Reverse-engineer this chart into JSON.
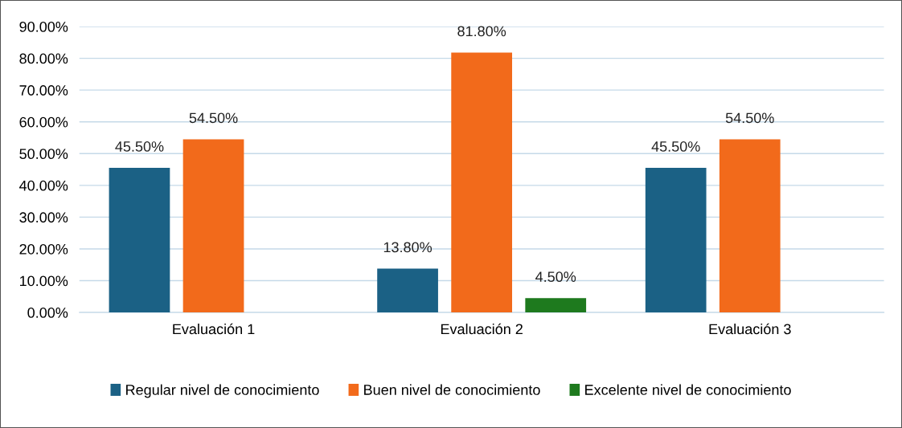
{
  "chart_data": {
    "type": "bar",
    "categories": [
      "Evaluación 1",
      "Evaluación 2",
      "Evaluación 3"
    ],
    "series": [
      {
        "name": "Regular nivel de conocimiento",
        "color": "#1b6185",
        "values": [
          45.5,
          13.8,
          45.5
        ],
        "value_labels": [
          "45.50%",
          "13.80%",
          "45.50%"
        ]
      },
      {
        "name": "Buen nivel de conocimiento",
        "color": "#f26a1b",
        "values": [
          54.5,
          81.8,
          54.5
        ],
        "value_labels": [
          "54.50%",
          "81.80%",
          "54.50%"
        ]
      },
      {
        "name": "Excelente nivel de conocimiento",
        "color": "#1e7a1e",
        "values": [
          null,
          4.5,
          null
        ],
        "value_labels": [
          null,
          "4.50%",
          null
        ]
      }
    ],
    "ylim": [
      0,
      90
    ],
    "yticks": [
      {
        "value": 0,
        "label": "0.00%"
      },
      {
        "value": 10,
        "label": "10.00%"
      },
      {
        "value": 20,
        "label": "20.00%"
      },
      {
        "value": 30,
        "label": "30.00%"
      },
      {
        "value": 40,
        "label": "40.00%"
      },
      {
        "value": 50,
        "label": "50.00%"
      },
      {
        "value": 60,
        "label": "60.00%"
      },
      {
        "value": 70,
        "label": "70.00%"
      },
      {
        "value": 80,
        "label": "80.00%"
      },
      {
        "value": 90,
        "label": "90.00%"
      }
    ],
    "grid": "y",
    "legend": "bottom"
  }
}
